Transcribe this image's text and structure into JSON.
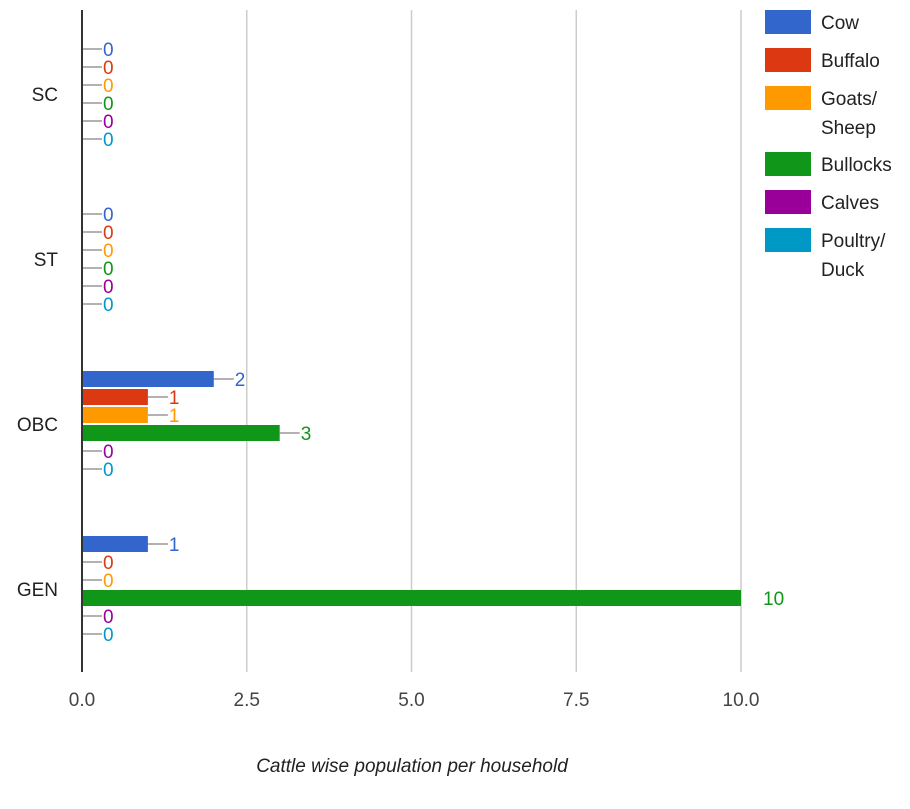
{
  "chart_data": {
    "type": "bar",
    "orientation": "horizontal",
    "categories": [
      "SC",
      "ST",
      "OBC",
      "GEN"
    ],
    "series": [
      {
        "name": "Cow",
        "values": [
          0,
          0,
          2,
          1
        ],
        "color": "#3366cc"
      },
      {
        "name": "Buffalo",
        "values": [
          0,
          0,
          1,
          0
        ],
        "color": "#dc3912"
      },
      {
        "name": "Goats/ Sheep",
        "values": [
          0,
          0,
          1,
          0
        ],
        "color": "#ff9900"
      },
      {
        "name": "Bullocks",
        "values": [
          0,
          0,
          3,
          10
        ],
        "color": "#109618"
      },
      {
        "name": "Calves",
        "values": [
          0,
          0,
          0,
          0
        ],
        "color": "#990099"
      },
      {
        "name": "Poultry/ Duck",
        "values": [
          0,
          0,
          0,
          0
        ],
        "color": "#0099c6"
      }
    ],
    "xlim": [
      0,
      10
    ],
    "xticks": [
      "0.0",
      "2.5",
      "5.0",
      "7.5",
      "10.0"
    ],
    "xlabel": "Cattle wise population per household",
    "grid": true,
    "legend_position": "right"
  }
}
